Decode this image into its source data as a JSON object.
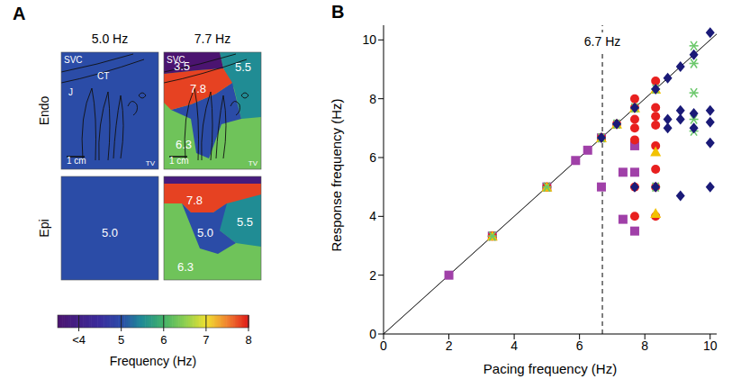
{
  "panel_a": {
    "letter": "A",
    "columns": [
      "5.0 Hz",
      "7.7 Hz"
    ],
    "rows": [
      "Endo",
      "Epi"
    ],
    "maps": [
      {
        "row": 0,
        "column": 0,
        "regions": [
          {
            "value": 5.0
          }
        ],
        "annotations": [
          "SVC",
          "CT",
          "J",
          "TV",
          "1 cm"
        ]
      },
      {
        "row": 0,
        "column": 1,
        "regions": [
          {
            "value": 6.3,
            "label": "6.3"
          },
          {
            "value": 5.5,
            "label": "5.5"
          },
          {
            "value": 5.0
          },
          {
            "value": 7.8,
            "label": "7.8"
          },
          {
            "value": 3.5,
            "label": "3.5"
          }
        ],
        "annotations": [
          "SVC",
          "TV",
          "1 cm"
        ]
      },
      {
        "row": 1,
        "column": 0,
        "regions": [
          {
            "value": 5.0,
            "label": "5.0"
          }
        ],
        "annotations": []
      },
      {
        "row": 1,
        "column": 1,
        "regions": [
          {
            "value": 6.3,
            "label": "6.3"
          },
          {
            "value": 5.5,
            "label": "5.5"
          },
          {
            "value": 7.8,
            "label": "7.8"
          },
          {
            "value": 5.0,
            "label": "5.0"
          },
          {
            "value": 3.8
          }
        ],
        "annotations": []
      }
    ],
    "colorbar": {
      "title": "Frequency (Hz)",
      "range": [
        3.5,
        8
      ],
      "ticks": [
        {
          "value": 4,
          "label": "<4"
        },
        5,
        6,
        7,
        8
      ]
    }
  },
  "chart_data": {
    "letter": "B",
    "type": "scatter",
    "xlabel": "Pacing frequency (Hz)",
    "ylabel": "Response frequency (Hz)",
    "xlim": [
      0,
      10.2
    ],
    "ylim": [
      0,
      10.5
    ],
    "xticks": [
      0,
      2,
      4,
      6,
      8,
      10
    ],
    "yticks": [
      0,
      2,
      4,
      6,
      8,
      10
    ],
    "reference_lines": [
      {
        "x": [
          0,
          10.2
        ],
        "y": [
          0,
          10.2
        ],
        "line_style": "solid"
      }
    ],
    "annotations": [
      {
        "x": 6.7,
        "label": "6.7 Hz",
        "line_style": "dashed"
      }
    ],
    "series": [
      {
        "color": "#a040a8",
        "marker": "square",
        "x": [
          2,
          3.33,
          5,
          5.88,
          6.25,
          6.67,
          6.67,
          7.33,
          7.33,
          7.69,
          7.69,
          7.69
        ],
        "values": [
          2,
          3.33,
          5,
          5.9,
          6.25,
          6.67,
          5.0,
          5.5,
          3.9,
          6.4,
          5.5,
          3.5
        ]
      },
      {
        "color": "#e8201f",
        "marker": "circle",
        "x": [
          3.33,
          5,
          6.67,
          7.14,
          7.69,
          7.69,
          7.69,
          7.69,
          7.69,
          7.69,
          7.69,
          8.33,
          8.33,
          8.33,
          8.33,
          8.33,
          8.33,
          8.33,
          8.33
        ],
        "values": [
          3.33,
          5,
          6.67,
          7.14,
          8.0,
          7.7,
          7.3,
          7.0,
          6.6,
          5.0,
          4.0,
          8.6,
          7.7,
          7.4,
          7.1,
          6.4,
          5.6,
          5.0,
          4.0
        ]
      },
      {
        "color": "#f2c200",
        "marker": "triangle",
        "x": [
          3.33,
          5,
          6.67,
          7.14,
          7.69,
          8.33,
          8.33,
          8.33
        ],
        "values": [
          3.33,
          5,
          6.67,
          7.14,
          7.69,
          8.33,
          6.2,
          4.1
        ]
      },
      {
        "color": "#6cc86c",
        "marker": "asterisk",
        "x": [
          3.33,
          5,
          6.67,
          7.14,
          7.69,
          8.33,
          8.33,
          9.5,
          9.5,
          9.5,
          9.5,
          9.5
        ],
        "values": [
          3.33,
          5,
          6.67,
          7.14,
          7.69,
          8.33,
          5.0,
          9.8,
          9.2,
          8.2,
          7.3,
          6.9
        ]
      },
      {
        "color": "#1a1a78",
        "marker": "diamond",
        "x": [
          6.67,
          7.14,
          7.69,
          8.33,
          8.7,
          9.09,
          9.5,
          10,
          7.69,
          8.33,
          8.7,
          8.7,
          9.09,
          9.09,
          9.09,
          9.5,
          9.5,
          10,
          10,
          10,
          10
        ],
        "values": [
          6.67,
          7.14,
          7.69,
          8.33,
          8.7,
          9.09,
          9.5,
          10.25,
          5.0,
          5.0,
          7.0,
          7.3,
          4.7,
          7.3,
          7.6,
          7.5,
          7.0,
          7.6,
          7.2,
          6.5,
          5.0
        ]
      }
    ]
  }
}
